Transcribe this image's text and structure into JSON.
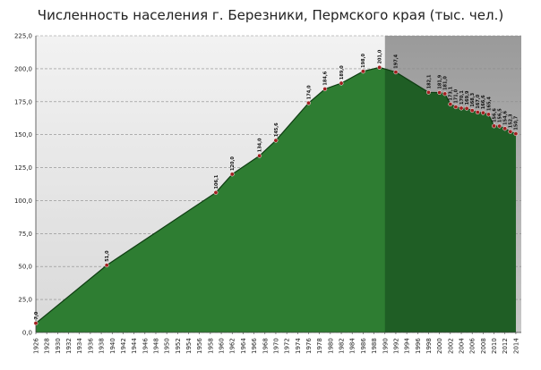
{
  "chart_data": {
    "type": "area",
    "title": "Численность населения г. Березники, Пермского края (тыс. чел.)",
    "xlabel": "",
    "ylabel": "",
    "xlim": [
      1926,
      2015
    ],
    "ylim": [
      0,
      225
    ],
    "y_ticks": [
      "0,0",
      "25,0",
      "50,0",
      "75,0",
      "100,0",
      "125,0",
      "150,0",
      "175,0",
      "200,0",
      "225,0"
    ],
    "x_ticks": [
      1926,
      1928,
      1930,
      1932,
      1934,
      1936,
      1938,
      1940,
      1942,
      1944,
      1946,
      1948,
      1950,
      1952,
      1954,
      1956,
      1958,
      1960,
      1962,
      1964,
      1966,
      1968,
      1970,
      1972,
      1974,
      1976,
      1978,
      1980,
      1982,
      1984,
      1986,
      1988,
      1990,
      1992,
      1994,
      1996,
      1998,
      2000,
      2002,
      2004,
      2006,
      2008,
      2010,
      2012,
      2014
    ],
    "grid": true,
    "shaded_region_start": 1990,
    "colors": {
      "area_fill": "#2e7d32",
      "area_fill_shaded": "#1f5e25",
      "line": "#0f3d12",
      "marker": "#a12020",
      "bg_left": "#e6e6e6",
      "bg_right": "#b0b0b0"
    },
    "points": [
      {
        "x": 1926,
        "y": 7.0,
        "label": "7,0"
      },
      {
        "x": 1939,
        "y": 51.0,
        "label": "51,0"
      },
      {
        "x": 1959,
        "y": 106.1,
        "label": "106,1"
      },
      {
        "x": 1962,
        "y": 120.0,
        "label": "120,0"
      },
      {
        "x": 1967,
        "y": 134.0,
        "label": "134,0"
      },
      {
        "x": 1970,
        "y": 145.6,
        "label": "145,6"
      },
      {
        "x": 1976,
        "y": 174.0,
        "label": "174,0"
      },
      {
        "x": 1979,
        "y": 184.6,
        "label": "184,6"
      },
      {
        "x": 1982,
        "y": 189.0,
        "label": "189,0"
      },
      {
        "x": 1986,
        "y": 198.0,
        "label": "198,0"
      },
      {
        "x": 1989,
        "y": 201.0,
        "label": "201,0"
      },
      {
        "x": 1992,
        "y": 197.4,
        "label": "197,4"
      },
      {
        "x": 1998,
        "y": 182.1,
        "label": "182,1"
      },
      {
        "x": 2000,
        "y": 181.9,
        "label": "181,9"
      },
      {
        "x": 2001,
        "y": 181.0,
        "label": "181,0"
      },
      {
        "x": 2002,
        "y": 173.1,
        "label": "173,1"
      },
      {
        "x": 2003,
        "y": 171.0,
        "label": "171,0"
      },
      {
        "x": 2004,
        "y": 170.1,
        "label": "170,1"
      },
      {
        "x": 2005,
        "y": 169.9,
        "label": "169,9"
      },
      {
        "x": 2006,
        "y": 168.3,
        "label": "168,3"
      },
      {
        "x": 2007,
        "y": 167.0,
        "label": "167,0"
      },
      {
        "x": 2008,
        "y": 166.6,
        "label": "166,6"
      },
      {
        "x": 2009,
        "y": 165.4,
        "label": "165,4"
      },
      {
        "x": 2010,
        "y": 156.6,
        "label": "156,6"
      },
      {
        "x": 2011,
        "y": 156.5,
        "label": "156,5"
      },
      {
        "x": 2012,
        "y": 154.6,
        "label": "154,6"
      },
      {
        "x": 2013,
        "y": 152.3,
        "label": "152,3"
      },
      {
        "x": 2014,
        "y": 150.7,
        "label": "150,7"
      }
    ]
  }
}
